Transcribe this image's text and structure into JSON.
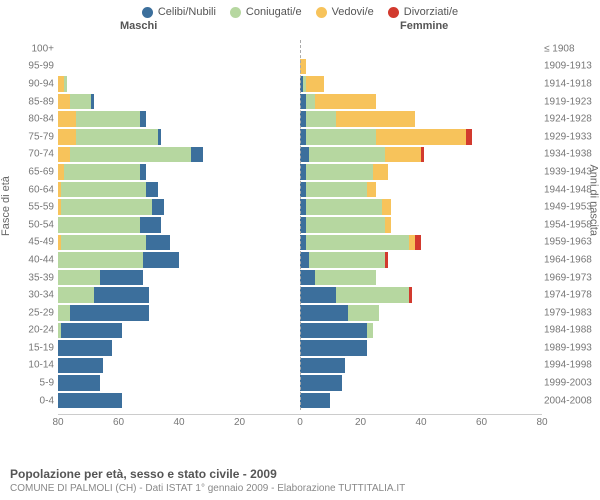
{
  "legend": [
    {
      "label": "Celibi/Nubili",
      "color": "#3c6f9c"
    },
    {
      "label": "Coniugati/e",
      "color": "#b6d7a0"
    },
    {
      "label": "Vedovi/e",
      "color": "#f7c35b"
    },
    {
      "label": "Divorziati/e",
      "color": "#d23a2e"
    }
  ],
  "headers": {
    "male": "Maschi",
    "female": "Femmine"
  },
  "ylabels": {
    "left": "Fasce di età",
    "right": "Anni di nascita"
  },
  "xaxis": {
    "min": -80,
    "max": 80,
    "ticks": [
      -80,
      -60,
      -40,
      -20,
      0,
      20,
      40,
      60,
      80
    ]
  },
  "title": "Popolazione per età, sesso e stato civile - 2009",
  "subtitle": "COMUNE DI PALMOLI (CH) - Dati ISTAT 1° gennaio 2009 - Elaborazione TUTTITALIA.IT",
  "colors": {
    "celibi": "#3c6f9c",
    "coniugati": "#b6d7a0",
    "vedovi": "#f7c35b",
    "divorziati": "#d23a2e",
    "grid": "#cccccc",
    "bg": "#ffffff"
  },
  "rows": [
    {
      "age": "100+",
      "birth": "≤ 1908",
      "m": {
        "c": 0,
        "co": 0,
        "v": 0,
        "d": 0
      },
      "f": {
        "c": 0,
        "co": 0,
        "v": 0,
        "d": 0
      }
    },
    {
      "age": "95-99",
      "birth": "1909-1913",
      "m": {
        "c": 0,
        "co": 0,
        "v": 0,
        "d": 0
      },
      "f": {
        "c": 0,
        "co": 0,
        "v": 2,
        "d": 0
      }
    },
    {
      "age": "90-94",
      "birth": "1914-1918",
      "m": {
        "c": 0,
        "co": 1,
        "v": 2,
        "d": 0
      },
      "f": {
        "c": 1,
        "co": 1,
        "v": 6,
        "d": 0
      }
    },
    {
      "age": "85-89",
      "birth": "1919-1923",
      "m": {
        "c": 1,
        "co": 7,
        "v": 4,
        "d": 0
      },
      "f": {
        "c": 2,
        "co": 3,
        "v": 20,
        "d": 0
      }
    },
    {
      "age": "80-84",
      "birth": "1924-1928",
      "m": {
        "c": 2,
        "co": 21,
        "v": 6,
        "d": 0
      },
      "f": {
        "c": 2,
        "co": 10,
        "v": 26,
        "d": 0
      }
    },
    {
      "age": "75-79",
      "birth": "1929-1933",
      "m": {
        "c": 1,
        "co": 27,
        "v": 6,
        "d": 0
      },
      "f": {
        "c": 2,
        "co": 23,
        "v": 30,
        "d": 2
      }
    },
    {
      "age": "70-74",
      "birth": "1934-1938",
      "m": {
        "c": 4,
        "co": 40,
        "v": 4,
        "d": 0
      },
      "f": {
        "c": 3,
        "co": 25,
        "v": 12,
        "d": 1
      }
    },
    {
      "age": "65-69",
      "birth": "1939-1943",
      "m": {
        "c": 2,
        "co": 25,
        "v": 2,
        "d": 0
      },
      "f": {
        "c": 2,
        "co": 22,
        "v": 5,
        "d": 0
      }
    },
    {
      "age": "60-64",
      "birth": "1944-1948",
      "m": {
        "c": 4,
        "co": 28,
        "v": 1,
        "d": 0
      },
      "f": {
        "c": 2,
        "co": 20,
        "v": 3,
        "d": 0
      }
    },
    {
      "age": "55-59",
      "birth": "1949-1953",
      "m": {
        "c": 4,
        "co": 30,
        "v": 1,
        "d": 0
      },
      "f": {
        "c": 2,
        "co": 25,
        "v": 3,
        "d": 0
      }
    },
    {
      "age": "50-54",
      "birth": "1954-1958",
      "m": {
        "c": 7,
        "co": 27,
        "v": 0,
        "d": 0
      },
      "f": {
        "c": 2,
        "co": 26,
        "v": 2,
        "d": 0
      }
    },
    {
      "age": "45-49",
      "birth": "1959-1963",
      "m": {
        "c": 8,
        "co": 28,
        "v": 1,
        "d": 0
      },
      "f": {
        "c": 2,
        "co": 34,
        "v": 2,
        "d": 2
      }
    },
    {
      "age": "40-44",
      "birth": "1964-1968",
      "m": {
        "c": 12,
        "co": 28,
        "v": 0,
        "d": 0
      },
      "f": {
        "c": 3,
        "co": 25,
        "v": 0,
        "d": 1
      }
    },
    {
      "age": "35-39",
      "birth": "1969-1973",
      "m": {
        "c": 14,
        "co": 14,
        "v": 0,
        "d": 0
      },
      "f": {
        "c": 5,
        "co": 20,
        "v": 0,
        "d": 0
      }
    },
    {
      "age": "30-34",
      "birth": "1974-1978",
      "m": {
        "c": 18,
        "co": 12,
        "v": 0,
        "d": 0
      },
      "f": {
        "c": 12,
        "co": 24,
        "v": 0,
        "d": 1
      }
    },
    {
      "age": "25-29",
      "birth": "1979-1983",
      "m": {
        "c": 26,
        "co": 4,
        "v": 0,
        "d": 0
      },
      "f": {
        "c": 16,
        "co": 10,
        "v": 0,
        "d": 0
      }
    },
    {
      "age": "20-24",
      "birth": "1984-1988",
      "m": {
        "c": 20,
        "co": 1,
        "v": 0,
        "d": 0
      },
      "f": {
        "c": 22,
        "co": 2,
        "v": 0,
        "d": 0
      }
    },
    {
      "age": "15-19",
      "birth": "1989-1993",
      "m": {
        "c": 18,
        "co": 0,
        "v": 0,
        "d": 0
      },
      "f": {
        "c": 22,
        "co": 0,
        "v": 0,
        "d": 0
      }
    },
    {
      "age": "10-14",
      "birth": "1994-1998",
      "m": {
        "c": 15,
        "co": 0,
        "v": 0,
        "d": 0
      },
      "f": {
        "c": 15,
        "co": 0,
        "v": 0,
        "d": 0
      }
    },
    {
      "age": "5-9",
      "birth": "1999-2003",
      "m": {
        "c": 14,
        "co": 0,
        "v": 0,
        "d": 0
      },
      "f": {
        "c": 14,
        "co": 0,
        "v": 0,
        "d": 0
      }
    },
    {
      "age": "0-4",
      "birth": "2004-2008",
      "m": {
        "c": 21,
        "co": 0,
        "v": 0,
        "d": 0
      },
      "f": {
        "c": 10,
        "co": 0,
        "v": 0,
        "d": 0
      }
    }
  ]
}
